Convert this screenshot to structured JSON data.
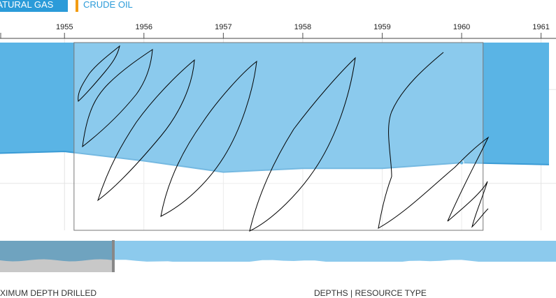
{
  "tabs": {
    "natural_gas": "NATURAL GAS",
    "crude_oil": "CRUDE OIL"
  },
  "footer": {
    "left_label": "MAXIMUM DEPTH DRILLED",
    "right_label": "DEPTHS | RESOURCE TYPE"
  },
  "colors": {
    "tab_active": "#2b9bd9",
    "tab_marker": "#f39c12",
    "area_fill": "#5ab4e5",
    "area_line": "#3a9bd5",
    "selection_fill": "#8ccaed",
    "nav_fill": "#8ccaed",
    "nav_selected": "#6fa3bf",
    "nav_gray": "#c8c8c8"
  },
  "chart_data": {
    "type": "area",
    "x_ticks": [
      "1955",
      "1956",
      "1957",
      "1958",
      "1959",
      "1960",
      "1961"
    ],
    "xlim": [
      1954.1,
      1961.1
    ],
    "ylim": [
      0,
      1
    ],
    "grid": true,
    "series": [
      {
        "x": [
          1954.1,
          1955.0,
          1956.0,
          1957.0,
          1958.0,
          1959.0,
          1960.0,
          1961.1
        ],
        "values": [
          0.41,
          0.42,
          0.37,
          0.31,
          0.33,
          0.33,
          0.36,
          0.35
        ]
      }
    ],
    "highlight_point": {
      "x": 1960.0,
      "y": 0.36
    },
    "selection_range": [
      1955.12,
      1960.27
    ]
  }
}
